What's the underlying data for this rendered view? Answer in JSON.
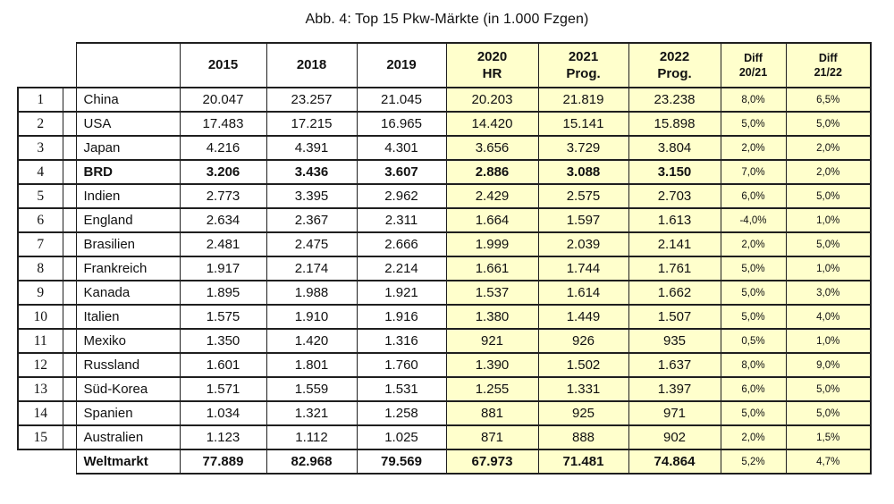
{
  "title": "Abb. 4: Top 15 Pkw-Märkte (in 1.000 Fzgen)",
  "colors": {
    "highlight": "#FFFFCC",
    "border": "#1f1f1f",
    "text": "#111111"
  },
  "table": {
    "column_headers": [
      {
        "line1": "2015",
        "line2": ""
      },
      {
        "line1": "2018",
        "line2": ""
      },
      {
        "line1": "2019",
        "line2": ""
      },
      {
        "line1": "2020",
        "line2": "HR"
      },
      {
        "line1": "2021",
        "line2": "Prog."
      },
      {
        "line1": "2022",
        "line2": "Prog."
      },
      {
        "line1": "Diff",
        "line2": "20/21"
      },
      {
        "line1": "Diff",
        "line2": "21/22"
      }
    ],
    "rows": [
      {
        "rank": "1",
        "country": "China",
        "values": [
          "20.047",
          "23.257",
          "21.045",
          "20.203",
          "21.819",
          "23.238",
          "8,0%",
          "6,5%"
        ],
        "bold": false
      },
      {
        "rank": "2",
        "country": "USA",
        "values": [
          "17.483",
          "17.215",
          "16.965",
          "14.420",
          "15.141",
          "15.898",
          "5,0%",
          "5,0%"
        ],
        "bold": false
      },
      {
        "rank": "3",
        "country": "Japan",
        "values": [
          "4.216",
          "4.391",
          "4.301",
          "3.656",
          "3.729",
          "3.804",
          "2,0%",
          "2,0%"
        ],
        "bold": false
      },
      {
        "rank": "4",
        "country": "BRD",
        "values": [
          "3.206",
          "3.436",
          "3.607",
          "2.886",
          "3.088",
          "3.150",
          "7,0%",
          "2,0%"
        ],
        "bold": true
      },
      {
        "rank": "5",
        "country": "Indien",
        "values": [
          "2.773",
          "3.395",
          "2.962",
          "2.429",
          "2.575",
          "2.703",
          "6,0%",
          "5,0%"
        ],
        "bold": false
      },
      {
        "rank": "6",
        "country": "England",
        "values": [
          "2.634",
          "2.367",
          "2.311",
          "1.664",
          "1.597",
          "1.613",
          "-4,0%",
          "1,0%"
        ],
        "bold": false
      },
      {
        "rank": "7",
        "country": "Brasilien",
        "values": [
          "2.481",
          "2.475",
          "2.666",
          "1.999",
          "2.039",
          "2.141",
          "2,0%",
          "5,0%"
        ],
        "bold": false
      },
      {
        "rank": "8",
        "country": "Frankreich",
        "values": [
          "1.917",
          "2.174",
          "2.214",
          "1.661",
          "1.744",
          "1.761",
          "5,0%",
          "1,0%"
        ],
        "bold": false
      },
      {
        "rank": "9",
        "country": "Kanada",
        "values": [
          "1.895",
          "1.988",
          "1.921",
          "1.537",
          "1.614",
          "1.662",
          "5,0%",
          "3,0%"
        ],
        "bold": false
      },
      {
        "rank": "10",
        "country": "Italien",
        "values": [
          "1.575",
          "1.910",
          "1.916",
          "1.380",
          "1.449",
          "1.507",
          "5,0%",
          "4,0%"
        ],
        "bold": false
      },
      {
        "rank": "11",
        "country": "Mexiko",
        "values": [
          "1.350",
          "1.420",
          "1.316",
          "921",
          "926",
          "935",
          "0,5%",
          "1,0%"
        ],
        "bold": false
      },
      {
        "rank": "12",
        "country": "Russland",
        "values": [
          "1.601",
          "1.801",
          "1.760",
          "1.390",
          "1.502",
          "1.637",
          "8,0%",
          "9,0%"
        ],
        "bold": false
      },
      {
        "rank": "13",
        "country": "Süd-Korea",
        "values": [
          "1.571",
          "1.559",
          "1.531",
          "1.255",
          "1.331",
          "1.397",
          "6,0%",
          "5,0%"
        ],
        "bold": false
      },
      {
        "rank": "14",
        "country": "Spanien",
        "values": [
          "1.034",
          "1.321",
          "1.258",
          "881",
          "925",
          "971",
          "5,0%",
          "5,0%"
        ],
        "bold": false
      },
      {
        "rank": "15",
        "country": "Australien",
        "values": [
          "1.123",
          "1.112",
          "1.025",
          "871",
          "888",
          "902",
          "2,0%",
          "1,5%"
        ],
        "bold": false
      }
    ],
    "total_row": {
      "rank": "",
      "country": "Weltmarkt",
      "values": [
        "77.889",
        "82.968",
        "79.569",
        "67.973",
        "71.481",
        "74.864",
        "5,2%",
        "4,7%"
      ],
      "bold": true
    }
  }
}
